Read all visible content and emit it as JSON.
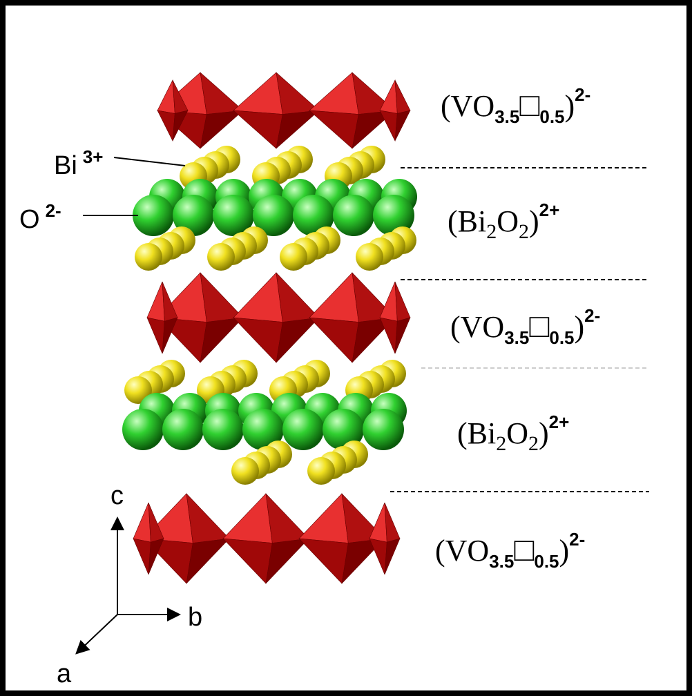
{
  "labels": {
    "bi": {
      "symbol": "Bi",
      "charge": "3+"
    },
    "o": {
      "symbol": "O",
      "charge": "2-"
    }
  },
  "layers": [
    {
      "open": "(VO",
      "sub": "3.5",
      "box": "□",
      "sub2": "0.5",
      "close": ")",
      "sup": "2-"
    },
    {
      "open": "(Bi",
      "sub": "2",
      "mid": "O",
      "sub2": "2",
      "close": ")",
      "sup": "2+"
    },
    {
      "open": "(VO",
      "sub": "3.5",
      "box": "□",
      "sub2": "0.5",
      "close": ")",
      "sup": "2-"
    },
    {
      "open": "(Bi",
      "sub": "2",
      "mid": "O",
      "sub2": "2",
      "close": ")",
      "sup": "2+"
    },
    {
      "open": "(VO",
      "sub": "3.5",
      "box": "□",
      "sub2": "0.5",
      "close": ")",
      "sup": "2-"
    }
  ],
  "axes": {
    "c": "c",
    "b": "b",
    "a": "a"
  }
}
